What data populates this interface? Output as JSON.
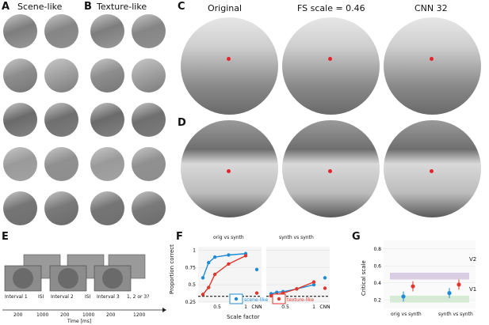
{
  "panels": {
    "A": {
      "letter": "A",
      "title": "Scene-like"
    },
    "B": {
      "letter": "B",
      "title": "Texture-like"
    },
    "C": {
      "letter": "C",
      "col_titles": [
        "Original",
        "FS scale = 0.46",
        "CNN 32"
      ]
    },
    "D": {
      "letter": "D"
    },
    "E": {
      "letter": "E",
      "intervals": [
        "Interval 1",
        "ISI",
        "Interval 2",
        "ISI",
        "Interval 3",
        "1, 2 or 3?"
      ],
      "durations": [
        "200",
        "1000",
        "200",
        "1000",
        "200",
        "1200"
      ],
      "time_label": "Time [ms]"
    },
    "F": {
      "letter": "F"
    },
    "G": {
      "letter": "G"
    }
  },
  "chart_data": [
    {
      "type": "line",
      "panel": "F",
      "subplots": [
        "orig vs synth",
        "synth vs synth"
      ],
      "xlabel": "Scale factor",
      "ylabel": "Proportion correct",
      "x_ticks": [
        "0.5",
        "1",
        "CNN"
      ],
      "y_ticks": [
        "0.25",
        "0.5",
        "0.75",
        "1"
      ],
      "ylim": [
        0.25,
        1.05
      ],
      "chance": 0.333,
      "series": [
        {
          "name": "scene-like",
          "color": "#1f8bd6",
          "orig": [
            [
              0.25,
              0.6
            ],
            [
              0.35,
              0.82
            ],
            [
              0.46,
              0.9
            ],
            [
              0.7,
              0.93
            ],
            [
              1,
              0.95
            ]
          ],
          "synth": [
            [
              0.25,
              0.37
            ],
            [
              0.35,
              0.39
            ],
            [
              0.46,
              0.4
            ],
            [
              0.7,
              0.44
            ],
            [
              1,
              0.5
            ]
          ],
          "cnn_orig": 0.72,
          "cnn_synth": 0.6
        },
        {
          "name": "texture-like",
          "color": "#e0362c",
          "orig": [
            [
              0.25,
              0.36
            ],
            [
              0.35,
              0.46
            ],
            [
              0.46,
              0.65
            ],
            [
              0.7,
              0.8
            ],
            [
              1,
              0.92
            ]
          ],
          "synth": [
            [
              0.25,
              0.34
            ],
            [
              0.35,
              0.36
            ],
            [
              0.46,
              0.38
            ],
            [
              0.7,
              0.44
            ],
            [
              1,
              0.54
            ]
          ],
          "cnn_orig": 0.38,
          "cnn_synth": 0.45
        }
      ]
    },
    {
      "type": "scatter",
      "panel": "G",
      "ylabel": "Critical scale",
      "x_ticks": [
        "orig vs synth",
        "synth vs synth"
      ],
      "y_ticks": [
        "0.2",
        "0.4",
        "0.6",
        "0.8"
      ],
      "ylim": [
        0.1,
        0.9
      ],
      "bands": [
        {
          "label": "V2",
          "range": [
            0.44,
            0.52
          ],
          "color": "#d9cde3"
        },
        {
          "label": "V1",
          "range": [
            0.17,
            0.25
          ],
          "color": "#d6ebd4"
        }
      ],
      "series": [
        {
          "name": "scene-like",
          "color": "#1f8bd6",
          "orig": 0.24,
          "synth": 0.28
        },
        {
          "name": "texture-like",
          "color": "#e0362c",
          "orig": 0.36,
          "synth": 0.38
        }
      ]
    }
  ]
}
